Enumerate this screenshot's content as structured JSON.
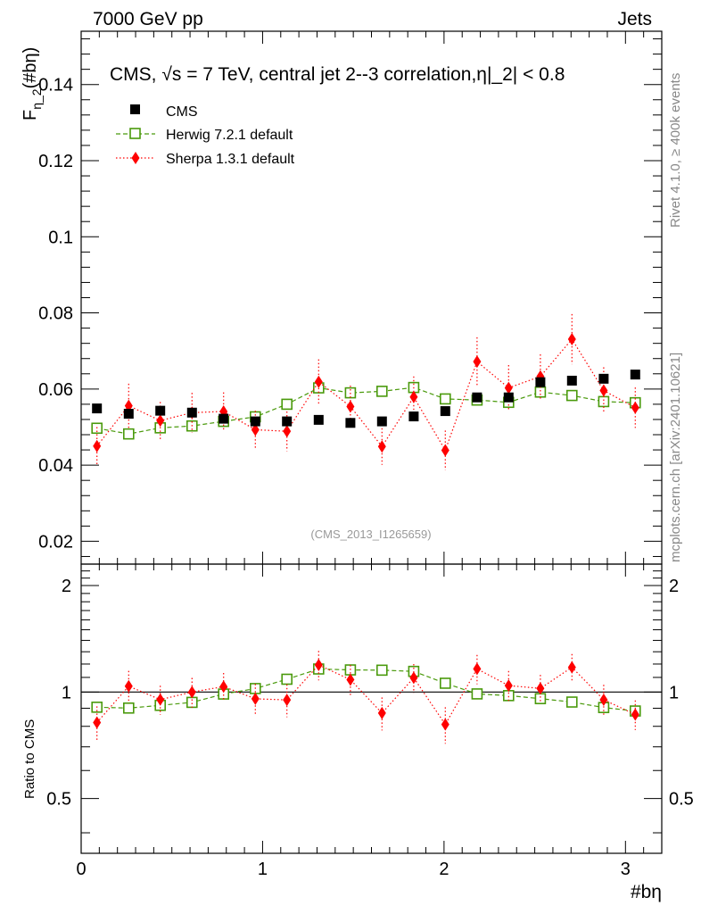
{
  "header": {
    "left": "7000 GeV pp",
    "right": "Jets",
    "title": "CMS, √s = 7 TeV, central jet 2--3 correlation,η|_2| < 0.8",
    "footnote": "(CMS_2013_I1265659)",
    "side_rivet": "Rivet 4.1.0, ≥ 400k events",
    "side_mcplots": "mcplots.cern.ch [arXiv:2401.10621]"
  },
  "colors": {
    "cms": "#000000",
    "herwig": "#4a9a0c",
    "sherpa": "#ff0000"
  },
  "chart_data": {
    "type": "scatter",
    "xlabel": "#bη",
    "ylabel": "F",
    "ylabel_sub": "η_2",
    "ylabel_suffix": "(#bη)",
    "ratio_ylabel": "Ratio to CMS",
    "xlim": [
      0,
      3.2
    ],
    "ylim": [
      0.014,
      0.154
    ],
    "ratio_ylim": [
      0.35,
      2.3
    ],
    "x_ticks": [
      0,
      1,
      2,
      3
    ],
    "x_tick_labels": [
      "0",
      "1",
      "2",
      "3"
    ],
    "y_ticks": [
      0.02,
      0.04,
      0.06,
      0.08,
      0.1,
      0.12,
      0.14
    ],
    "y_tick_labels": [
      "0.02",
      "0.04",
      "0.06",
      "0.08",
      "0.1",
      "0.12",
      "0.14"
    ],
    "ratio_ticks": [
      0.5,
      1,
      2
    ],
    "ratio_tick_labels": [
      "0.5",
      "1",
      "2"
    ],
    "x": [
      0.087,
      0.262,
      0.436,
      0.611,
      0.785,
      0.96,
      1.134,
      1.309,
      1.484,
      1.658,
      1.833,
      2.007,
      2.182,
      2.356,
      2.531,
      2.705,
      2.88,
      3.054
    ],
    "series": [
      {
        "name": "CMS",
        "style": "square-filled",
        "values": [
          0.0549,
          0.0535,
          0.0543,
          0.0538,
          0.0522,
          0.0515,
          0.0515,
          0.0519,
          0.0511,
          0.0515,
          0.0528,
          0.0542,
          0.0578,
          0.0578,
          0.0618,
          0.0622,
          0.0627,
          0.0638
        ],
        "errors": [
          0.001,
          0.001,
          0.001,
          0.001,
          0.001,
          0.001,
          0.001,
          0.001,
          0.001,
          0.001,
          0.001,
          0.001,
          0.001,
          0.001,
          0.001,
          0.001,
          0.001,
          0.001
        ]
      },
      {
        "name": "Herwig 7.2.1 default",
        "style": "square-open-dashed",
        "values": [
          0.0497,
          0.0482,
          0.0498,
          0.0503,
          0.0515,
          0.0527,
          0.056,
          0.0603,
          0.059,
          0.0594,
          0.0604,
          0.0574,
          0.0571,
          0.0565,
          0.0592,
          0.0583,
          0.0567,
          0.0564
        ],
        "errors": [
          0.0012,
          0.0011,
          0.0012,
          0.0012,
          0.0012,
          0.0012,
          0.0012,
          0.0013,
          0.0013,
          0.0013,
          0.0013,
          0.0012,
          0.0012,
          0.0012,
          0.0013,
          0.0012,
          0.0012,
          0.0012
        ],
        "ratio": [
          0.906,
          0.901,
          0.917,
          0.935,
          0.987,
          1.023,
          1.087,
          1.162,
          1.155,
          1.153,
          1.144,
          1.059,
          0.988,
          0.977,
          0.958,
          0.937,
          0.904,
          0.884
        ]
      },
      {
        "name": "Sherpa 1.3.1 default",
        "style": "diamond-filled-dotted",
        "values": [
          0.045,
          0.0556,
          0.0517,
          0.0538,
          0.0541,
          0.0493,
          0.0489,
          0.0619,
          0.0554,
          0.0449,
          0.0579,
          0.0439,
          0.0672,
          0.0603,
          0.0633,
          0.0731,
          0.0596,
          0.0551
        ],
        "errors": [
          0.005,
          0.0058,
          0.0049,
          0.0052,
          0.005,
          0.005,
          0.0052,
          0.0059,
          0.0055,
          0.0048,
          0.0054,
          0.0052,
          0.0064,
          0.006,
          0.0058,
          0.0066,
          0.0061,
          0.0053
        ],
        "ratio": [
          0.82,
          1.039,
          0.952,
          1.0,
          1.036,
          0.957,
          0.95,
          1.193,
          1.084,
          0.872,
          1.097,
          0.81,
          1.163,
          1.043,
          1.024,
          1.175,
          0.951,
          0.864
        ]
      }
    ]
  }
}
